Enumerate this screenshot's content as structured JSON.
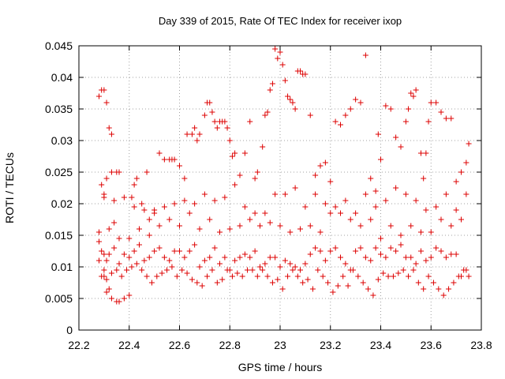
{
  "chart_data": {
    "type": "scatter",
    "title": "Day 339 of 2015, Rate Of TEC Index for receiver ixop",
    "xlabel": "GPS time / hours",
    "ylabel": "ROTI / TECUs",
    "xlim": [
      22.2,
      23.8
    ],
    "ylim": [
      0,
      0.045
    ],
    "x_ticks": [
      "22.2",
      "22.4",
      "22.6",
      "22.8",
      "23",
      "23.2",
      "23.4",
      "23.6",
      "23.8"
    ],
    "y_ticks": [
      "0",
      "0.005",
      "0.01",
      "0.015",
      "0.02",
      "0.025",
      "0.03",
      "0.035",
      "0.04",
      "0.045"
    ],
    "grid": true,
    "marker": "+",
    "marker_color": "#dd0000",
    "series": [
      {
        "name": "ROTI",
        "x": [
          22.28,
          22.29,
          22.3,
          22.31,
          22.29,
          22.3,
          22.32,
          22.33,
          22.31,
          22.33,
          22.35,
          22.36,
          22.34,
          22.3,
          22.31,
          22.32,
          22.28,
          22.29,
          22.3,
          22.31,
          22.33,
          22.35,
          22.36,
          22.38,
          22.4,
          22.41,
          22.42,
          22.43,
          22.45,
          22.47,
          22.48,
          22.5,
          22.52,
          22.54,
          22.56,
          22.57,
          22.58,
          22.6,
          22.62,
          22.63,
          22.65,
          22.66,
          22.67,
          22.68,
          22.7,
          22.71,
          22.72,
          22.73,
          22.74,
          22.75,
          22.76,
          22.77,
          22.78,
          22.79,
          22.8,
          22.81,
          22.82,
          22.84,
          22.86,
          22.88,
          22.9,
          22.91,
          22.93,
          22.94,
          22.95,
          22.96,
          22.97,
          22.98,
          22.99,
          23.0,
          23.01,
          23.02,
          23.03,
          23.04,
          23.05,
          23.06,
          23.07,
          23.08,
          23.09,
          23.1,
          23.12,
          23.14,
          23.16,
          23.18,
          23.2,
          23.22,
          23.24,
          23.26,
          23.28,
          23.3,
          23.32,
          23.34,
          23.36,
          23.38,
          23.39,
          23.4,
          23.42,
          23.44,
          23.46,
          23.48,
          23.5,
          23.51,
          23.52,
          23.53,
          23.54,
          23.56,
          23.57,
          23.58,
          23.59,
          23.6,
          23.62,
          23.64,
          23.66,
          23.68,
          23.7,
          23.72,
          23.74,
          23.75,
          22.28,
          22.3,
          22.32,
          22.34,
          22.36,
          22.38,
          22.4,
          22.42,
          22.44,
          22.46,
          22.48,
          22.5,
          22.52,
          22.54,
          22.56,
          22.58,
          22.6,
          22.62,
          22.64,
          22.66,
          22.68,
          22.7,
          22.72,
          22.74,
          22.76,
          22.78,
          22.8,
          22.82,
          22.84,
          22.86,
          22.88,
          22.9,
          22.92,
          22.94,
          22.96,
          22.98,
          23.0,
          23.02,
          23.04,
          23.06,
          23.08,
          23.1,
          23.12,
          23.14,
          23.16,
          23.18,
          23.2,
          23.22,
          23.24,
          23.26,
          23.28,
          23.3,
          23.32,
          23.34,
          23.36,
          23.38,
          23.4,
          23.42,
          23.44,
          23.46,
          23.48,
          23.5,
          23.52,
          23.54,
          23.56,
          23.58,
          23.6,
          23.62,
          23.64,
          23.66,
          23.68,
          23.7,
          23.72,
          23.74,
          22.29,
          22.31,
          22.33,
          22.35,
          22.37,
          22.39,
          22.41,
          22.43,
          22.45,
          22.47,
          22.49,
          22.51,
          22.53,
          22.55,
          22.57,
          22.59,
          22.61,
          22.63,
          22.65,
          22.67,
          22.69,
          22.71,
          22.73,
          22.75,
          22.77,
          22.79,
          22.81,
          22.83,
          22.85,
          22.87,
          22.89,
          22.91,
          22.93,
          22.95,
          22.97,
          22.99,
          23.01,
          23.03,
          23.05,
          23.07,
          23.09,
          23.11,
          23.13,
          23.15,
          23.17,
          23.19,
          23.21,
          23.23,
          23.25,
          23.27,
          23.29,
          23.31,
          23.33,
          23.35,
          23.37,
          23.39,
          23.41,
          23.43,
          23.45,
          23.47,
          23.49,
          23.51,
          23.53,
          23.55,
          23.57,
          23.59,
          23.61,
          23.63,
          23.65,
          23.67,
          23.69,
          23.71,
          23.73,
          23.75,
          22.28,
          22.32,
          22.36,
          22.4,
          22.44,
          22.48,
          22.52,
          22.56,
          22.6,
          22.64,
          22.68,
          22.72,
          22.76,
          22.8,
          22.84,
          22.88,
          22.92,
          22.96,
          23.0,
          23.04,
          23.08,
          23.12,
          23.16,
          23.2,
          23.24,
          23.28,
          23.32,
          23.36,
          23.4,
          23.44,
          23.48,
          23.52,
          23.56,
          23.6,
          23.64,
          23.68,
          23.72,
          22.3,
          22.34,
          22.38,
          22.42,
          22.46,
          22.5,
          22.54,
          22.58,
          22.62,
          22.66,
          22.7,
          22.74,
          22.78,
          22.82,
          22.86,
          22.9,
          22.94,
          22.98,
          23.02,
          23.06,
          23.1,
          23.14,
          23.18,
          23.22,
          23.26,
          23.3,
          23.34,
          23.38,
          23.42,
          23.46,
          23.5,
          23.54,
          23.58,
          23.62,
          23.66,
          23.7,
          23.74
        ],
        "y": [
          0.037,
          0.038,
          0.038,
          0.036,
          0.023,
          0.021,
          0.032,
          0.031,
          0.024,
          0.025,
          0.025,
          0.025,
          0.017,
          0.0085,
          0.006,
          0.0065,
          0.014,
          0.0125,
          0.012,
          0.011,
          0.005,
          0.0045,
          0.0045,
          0.005,
          0.0055,
          0.021,
          0.023,
          0.024,
          0.02,
          0.025,
          0.0175,
          0.019,
          0.028,
          0.027,
          0.027,
          0.027,
          0.027,
          0.026,
          0.024,
          0.031,
          0.031,
          0.032,
          0.03,
          0.031,
          0.034,
          0.036,
          0.036,
          0.0345,
          0.033,
          0.032,
          0.033,
          0.033,
          0.033,
          0.032,
          0.03,
          0.0275,
          0.028,
          0.0245,
          0.028,
          0.033,
          0.024,
          0.025,
          0.029,
          0.034,
          0.0345,
          0.038,
          0.039,
          0.0445,
          0.043,
          0.044,
          0.042,
          0.0395,
          0.037,
          0.0365,
          0.036,
          0.035,
          0.041,
          0.041,
          0.0405,
          0.0405,
          0.034,
          0.0245,
          0.026,
          0.0265,
          0.0235,
          0.033,
          0.0325,
          0.034,
          0.035,
          0.0365,
          0.036,
          0.0435,
          0.024,
          0.022,
          0.031,
          0.027,
          0.0355,
          0.035,
          0.0305,
          0.029,
          0.033,
          0.035,
          0.0375,
          0.037,
          0.038,
          0.028,
          0.024,
          0.028,
          0.033,
          0.036,
          0.036,
          0.0345,
          0.0335,
          0.0335,
          0.0235,
          0.025,
          0.0265,
          0.0295,
          0.011,
          0.0095,
          0.012,
          0.013,
          0.0105,
          0.012,
          0.0115,
          0.0125,
          0.0135,
          0.011,
          0.0115,
          0.0125,
          0.013,
          0.0115,
          0.011,
          0.0125,
          0.0125,
          0.0115,
          0.0125,
          0.0135,
          0.01,
          0.011,
          0.0115,
          0.013,
          0.0105,
          0.0115,
          0.0095,
          0.011,
          0.0115,
          0.012,
          0.0115,
          0.0125,
          0.01,
          0.0105,
          0.0115,
          0.0115,
          0.01,
          0.011,
          0.0105,
          0.01,
          0.0095,
          0.0105,
          0.012,
          0.013,
          0.0125,
          0.011,
          0.0125,
          0.013,
          0.0115,
          0.0105,
          0.0095,
          0.0125,
          0.013,
          0.0115,
          0.011,
          0.013,
          0.012,
          0.0115,
          0.013,
          0.0125,
          0.0135,
          0.0115,
          0.0115,
          0.0105,
          0.0125,
          0.011,
          0.0115,
          0.013,
          0.0125,
          0.0115,
          0.012,
          0.012,
          0.0085,
          0.0095,
          0.0085,
          0.008,
          0.009,
          0.0095,
          0.0085,
          0.0095,
          0.01,
          0.0105,
          0.0095,
          0.0085,
          0.0075,
          0.0085,
          0.009,
          0.0095,
          0.01,
          0.0085,
          0.0095,
          0.009,
          0.008,
          0.0075,
          0.007,
          0.0085,
          0.0095,
          0.0075,
          0.008,
          0.0095,
          0.0085,
          0.009,
          0.0085,
          0.0095,
          0.0095,
          0.0085,
          0.0095,
          0.0085,
          0.0075,
          0.008,
          0.0065,
          0.0085,
          0.0095,
          0.0085,
          0.0075,
          0.008,
          0.0065,
          0.0095,
          0.0085,
          0.0075,
          0.006,
          0.007,
          0.0085,
          0.007,
          0.0095,
          0.0085,
          0.0075,
          0.0065,
          0.0055,
          0.008,
          0.009,
          0.0085,
          0.0085,
          0.009,
          0.0095,
          0.0085,
          0.0095,
          0.0075,
          0.0065,
          0.0085,
          0.0075,
          0.0065,
          0.0055,
          0.0065,
          0.0075,
          0.0085,
          0.0095,
          0.0085,
          0.0155,
          0.016,
          0.0145,
          0.0145,
          0.016,
          0.015,
          0.0165,
          0.0175,
          0.0165,
          0.0185,
          0.016,
          0.0175,
          0.0155,
          0.016,
          0.0165,
          0.0175,
          0.0165,
          0.017,
          0.0165,
          0.0155,
          0.016,
          0.0165,
          0.0155,
          0.0185,
          0.0185,
          0.0175,
          0.0165,
          0.0175,
          0.0145,
          0.0165,
          0.015,
          0.0165,
          0.0155,
          0.0155,
          0.0175,
          0.0165,
          0.0175,
          0.0215,
          0.0205,
          0.021,
          0.0195,
          0.019,
          0.0185,
          0.0195,
          0.02,
          0.0205,
          0.02,
          0.0215,
          0.0205,
          0.021,
          0.023,
          0.0195,
          0.0185,
          0.0185,
          0.0215,
          0.0215,
          0.0225,
          0.0195,
          0.0215,
          0.02,
          0.0195,
          0.0205,
          0.0185,
          0.0215,
          0.0195,
          0.0205,
          0.0225,
          0.0215,
          0.0205,
          0.019,
          0.0195,
          0.0215,
          0.019,
          0.0215
        ]
      }
    ]
  }
}
